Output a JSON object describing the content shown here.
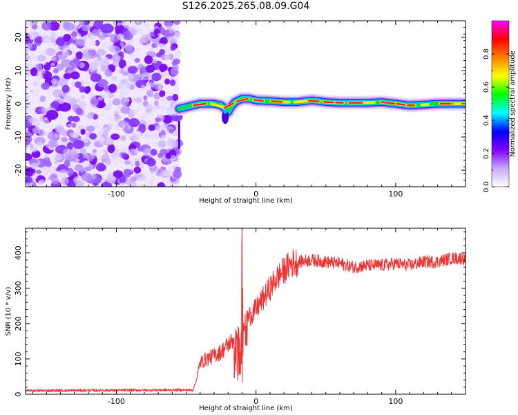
{
  "chart_data": [
    {
      "type": "heatmap",
      "title": "S126.2025.265.08.09.G04",
      "xlabel": "Height of straight line (km)",
      "ylabel": "Frequency (Hz)",
      "xlim": [
        -165,
        150
      ],
      "ylim": [
        -25,
        25
      ],
      "x_ticks": [
        -100,
        0,
        100
      ],
      "y_ticks": [
        -20,
        -10,
        0,
        10,
        20
      ],
      "noise_region_x": [
        -165,
        -55
      ],
      "signal_track": {
        "x": [
          -55,
          -50,
          -45,
          -40,
          -30,
          -25,
          -22,
          -20,
          -18,
          -15,
          -10,
          -5,
          0,
          10,
          20,
          30,
          40,
          50,
          60,
          70,
          80,
          90,
          100,
          110,
          120,
          130,
          140,
          150
        ],
        "freq": [
          -1.5,
          -1.0,
          -0.5,
          0.0,
          0.0,
          -0.5,
          -1.5,
          -2.5,
          -1.0,
          0.5,
          1.5,
          1.5,
          1.0,
          0.8,
          0.5,
          0.5,
          1.0,
          0.5,
          0.3,
          0.3,
          0.3,
          0.5,
          0.0,
          -0.5,
          -0.3,
          0.0,
          0.0,
          0.0
        ]
      },
      "colorbar": {
        "label": "Normalized spectral amplitude",
        "range": [
          0.0,
          1.0
        ],
        "ticks": [
          "0.0",
          "0.2",
          "0.4",
          "0.6",
          "0.8"
        ],
        "ticks_values": [
          0.0,
          0.2,
          0.4,
          0.6,
          0.8
        ],
        "colors": [
          "#ffffff",
          "#c8a8ff",
          "#8000ff",
          "#0000ff",
          "#00ffff",
          "#00ff00",
          "#ffff00",
          "#ff8000",
          "#ff0000",
          "#ff00ff"
        ]
      }
    },
    {
      "type": "line",
      "title": "",
      "xlabel": "Height of straight line (km)",
      "ylabel": "SNR (10 * v/v)",
      "xlim": [
        -165,
        150
      ],
      "ylim": [
        0,
        470
      ],
      "x_ticks": [
        -100,
        0,
        100
      ],
      "y_ticks": [
        0,
        100,
        200,
        300,
        400
      ],
      "color": "#ee3333",
      "profile": {
        "x": [
          -165,
          -60,
          -45,
          -42,
          -40,
          -35,
          -30,
          -25,
          -20,
          -15,
          -12,
          -10,
          -8,
          -5,
          0,
          5,
          10,
          15,
          20,
          25,
          30,
          40,
          50,
          60,
          70,
          80,
          90,
          100,
          110,
          120,
          130,
          140,
          150
        ],
        "snr": [
          10,
          12,
          12,
          50,
          90,
          100,
          110,
          120,
          140,
          160,
          170,
          200,
          200,
          220,
          240,
          270,
          300,
          330,
          350,
          370,
          375,
          380,
          375,
          370,
          360,
          365,
          365,
          370,
          365,
          375,
          375,
          385,
          385
        ]
      },
      "spike": {
        "x": -10,
        "peak": 470,
        "trough": 35
      }
    }
  ]
}
